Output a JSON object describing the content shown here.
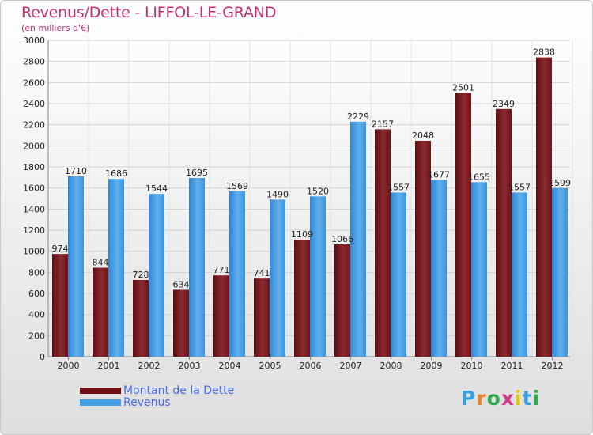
{
  "chart_data": {
    "type": "bar",
    "title": "Revenus/Dette - LIFFOL-LE-GRAND",
    "subtitle": "(en milliers d'€)",
    "categories": [
      "2000",
      "2001",
      "2002",
      "2003",
      "2004",
      "2005",
      "2006",
      "2007",
      "2008",
      "2009",
      "2010",
      "2011",
      "2012"
    ],
    "series": [
      {
        "name": "Montant de la Dette",
        "color": "#6b0f14",
        "values": [
          974,
          844,
          728,
          634,
          771,
          741,
          1109,
          1066,
          2157,
          2048,
          2501,
          2349,
          2838
        ],
        "labels": [
          "974",
          "844",
          "728",
          "634",
          "771",
          "741",
          "1109",
          "1066",
          "2157",
          "2048",
          "2501",
          "2349",
          "2838"
        ]
      },
      {
        "name": "Revenus",
        "color": "#4aa2e6",
        "values": [
          1710,
          1686,
          1544,
          1695,
          1569,
          1490,
          1520,
          2229,
          1557,
          1677,
          1655,
          1557,
          1599
        ],
        "labels": [
          "1710",
          "1686",
          "1544",
          "1695",
          "1569",
          "1490",
          "1520",
          "2229",
          "1557",
          "1677",
          "1655",
          "1557",
          "1599"
        ]
      }
    ],
    "ylim": [
      0,
      3000
    ],
    "yticks": [
      0,
      200,
      400,
      600,
      800,
      1000,
      1200,
      1400,
      1600,
      1800,
      2000,
      2200,
      2400,
      2600,
      2800,
      3000
    ],
    "xlabel": "",
    "ylabel": "",
    "grid": true,
    "legend_position": "bottom-left"
  },
  "brand": {
    "text": "Proxiti",
    "letter_colors": [
      "#3aa0d8",
      "#e8842a",
      "#2fa84f",
      "#d63a8c",
      "#e2c400",
      "#3aa0d8",
      "#2fa84f"
    ]
  }
}
